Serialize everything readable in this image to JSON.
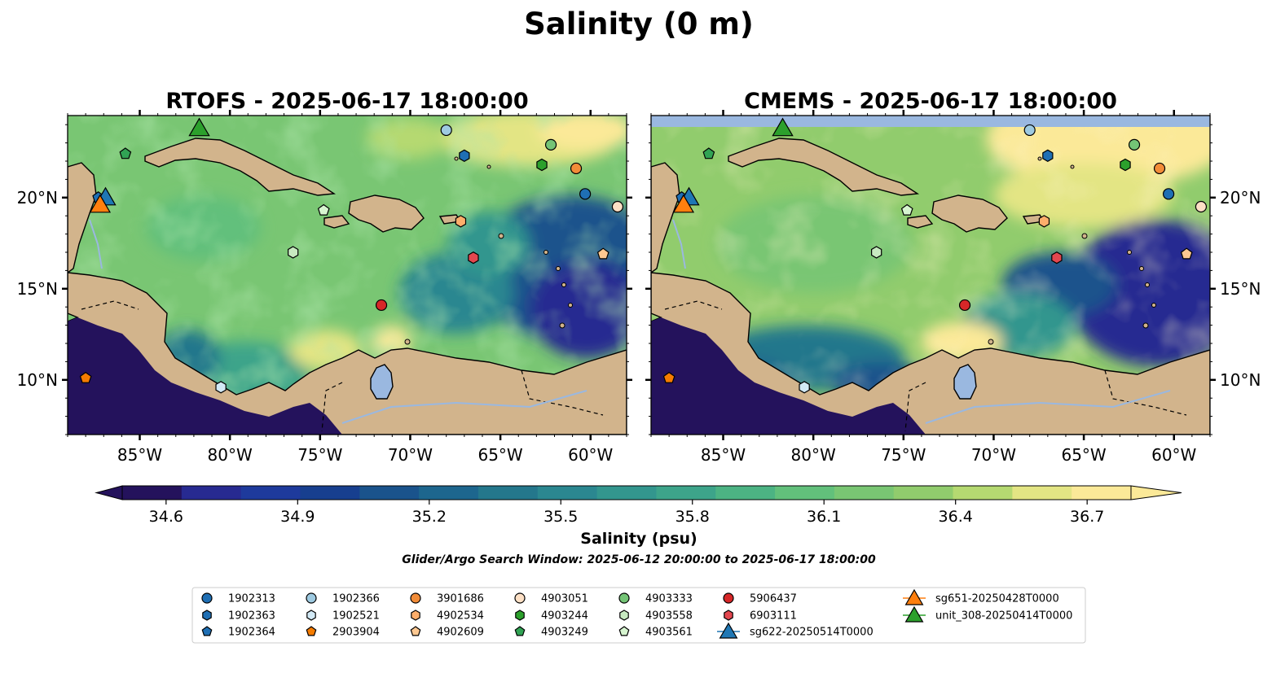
{
  "figure": {
    "title": "Salinity (0 m)",
    "search_window": "Glider/Argo Search Window: 2025-06-12 20:00:00 to 2025-06-17 18:00:00"
  },
  "chart_data": [
    {
      "type": "heatmap",
      "title": "RTOFS - 2025-06-17 18:00:00",
      "xlim": [
        -89,
        -58
      ],
      "ylim": [
        7,
        24.5
      ],
      "x_ticks": [
        "85°W",
        "80°W",
        "75°W",
        "70°W",
        "65°W",
        "60°W"
      ],
      "y_ticks": [
        "20°N",
        "15°N",
        "10°N"
      ],
      "grid": false
    },
    {
      "type": "heatmap",
      "title": "CMEMS - 2025-06-17 18:00:00",
      "xlim": [
        -89,
        -58
      ],
      "ylim": [
        7,
        24.5
      ],
      "x_ticks": [
        "85°W",
        "80°W",
        "75°W",
        "70°W",
        "65°W",
        "60°W"
      ],
      "y_ticks": [
        "20°N",
        "15°N",
        "10°N"
      ],
      "grid": false
    }
  ],
  "colorbar": {
    "label": "Salinity (psu)",
    "min": 34.5,
    "max": 36.8,
    "ticks": [
      "34.6",
      "34.9",
      "35.2",
      "35.5",
      "35.8",
      "36.1",
      "36.4",
      "36.7"
    ],
    "colors": [
      "#24125c",
      "#272a91",
      "#1e3a9c",
      "#173f8f",
      "#1a538c",
      "#1d668e",
      "#24778c",
      "#2b8790",
      "#33968e",
      "#3da48a",
      "#4cb383",
      "#62c07b",
      "#79c673",
      "#91cc6d",
      "#b5d971",
      "#e3e584",
      "#fbe998"
    ]
  },
  "markers": [
    {
      "id": "1902313",
      "lon": -60.3,
      "lat": 20.2,
      "shape": "circle",
      "color": "#1f6fb4"
    },
    {
      "id": "1902363",
      "lon": -67.0,
      "lat": 22.3,
      "shape": "hexagon",
      "color": "#1f6fb4"
    },
    {
      "id": "1902364",
      "lon": -87.3,
      "lat": 20.0,
      "shape": "pentagon",
      "color": "#1f6fb4"
    },
    {
      "id": "1902366",
      "lon": -68.0,
      "lat": 23.7,
      "shape": "circle",
      "color": "#9ecae1"
    },
    {
      "id": "1902521",
      "lon": -80.5,
      "lat": 9.6,
      "shape": "hexagon",
      "color": "#d2e9f5"
    },
    {
      "id": "2903904",
      "lon": -88.0,
      "lat": 10.1,
      "shape": "pentagon",
      "color": "#f57c00"
    },
    {
      "id": "3901686",
      "lon": -60.8,
      "lat": 21.6,
      "shape": "circle",
      "color": "#f28c38"
    },
    {
      "id": "4902534",
      "lon": -67.2,
      "lat": 18.7,
      "shape": "hexagon",
      "color": "#fdae6b"
    },
    {
      "id": "4902609",
      "lon": -59.3,
      "lat": 16.9,
      "shape": "pentagon",
      "color": "#fdc891"
    },
    {
      "id": "4903051",
      "lon": -58.5,
      "lat": 19.5,
      "shape": "circle",
      "color": "#fde0c5"
    },
    {
      "id": "4903244",
      "lon": -62.7,
      "lat": 21.8,
      "shape": "hexagon",
      "color": "#2ca02c"
    },
    {
      "id": "4903249",
      "lon": -85.8,
      "lat": 22.4,
      "shape": "pentagon",
      "color": "#31a354"
    },
    {
      "id": "4903333",
      "lon": -62.2,
      "lat": 22.9,
      "shape": "circle",
      "color": "#74c476"
    },
    {
      "id": "4903558",
      "lon": -76.5,
      "lat": 17.0,
      "shape": "hexagon",
      "color": "#c7e9c0"
    },
    {
      "id": "4903561",
      "lon": -74.8,
      "lat": 19.3,
      "shape": "pentagon",
      "color": "#d7f5d0"
    },
    {
      "id": "5906437",
      "lon": -71.6,
      "lat": 14.1,
      "shape": "circle",
      "color": "#d62728"
    },
    {
      "id": "6903111",
      "lon": -66.5,
      "lat": 16.7,
      "shape": "hexagon",
      "color": "#e3474f"
    },
    {
      "id": "sg622-20250514T0000",
      "lon": -86.9,
      "lat": 20.0,
      "shape": "triangle",
      "color": "#1f77b4"
    },
    {
      "id": "sg651-20250428T0000",
      "lon": -87.2,
      "lat": 19.6,
      "shape": "triangle",
      "color": "#ff7f0e"
    },
    {
      "id": "unit_308-20250414T0000",
      "lon": -81.7,
      "lat": 23.8,
      "shape": "triangle",
      "color": "#2ca02c"
    }
  ]
}
